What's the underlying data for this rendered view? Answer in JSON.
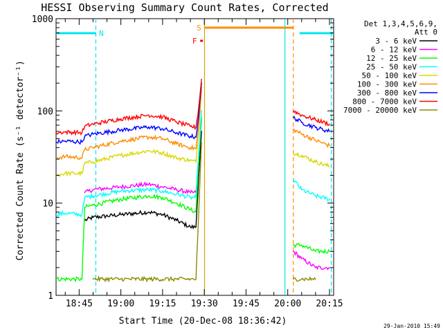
{
  "chart_data": {
    "type": "line",
    "title": "HESSI Observing Summary Count Rates, Corrected",
    "xlabel": "Start Time (20-Dec-08 18:36:42)",
    "ylabel": "Corrected Count Rate (s⁻¹ detector⁻¹)",
    "y_scale": "log",
    "xlim": [
      "18:36:42",
      "20:16:30"
    ],
    "ylim": [
      1,
      1000
    ],
    "x_ticks": [
      "18:45",
      "19:00",
      "19:15",
      "19:30",
      "19:45",
      "20:00",
      "20:15"
    ],
    "y_ticks": [
      "1",
      "10",
      "100",
      "1000"
    ],
    "grid": false,
    "legend_position": "right",
    "legend_header": [
      "Det 1,3,4,5,6,9,",
      "Att 0"
    ],
    "timestamp": "29-Jan-2010 15:49",
    "flags": [
      {
        "label": "N",
        "color": "#00e5ee",
        "intervals": [
          [
            "18:36:42",
            "18:51:00"
          ],
          [
            "20:04:15",
            "20:16:30"
          ]
        ]
      },
      {
        "label": "S",
        "color": "#ff8c00",
        "intervals": [
          [
            "19:30:05",
            "20:02:00"
          ]
        ]
      },
      {
        "label": "F",
        "color": "#ff0000",
        "intervals": [
          [
            "19:28:30",
            "19:29:30"
          ]
        ]
      }
    ],
    "vertical_markers": [
      {
        "time": "18:51:00",
        "color": "#00e5ee",
        "style": "dashed"
      },
      {
        "time": "19:30:05",
        "color": "#d8a200",
        "style": "solid"
      },
      {
        "time": "19:59:00",
        "color": "#00e5ee",
        "style": "solid"
      },
      {
        "time": "20:02:00",
        "color": "#ff8c00",
        "style": "dashed"
      },
      {
        "time": "20:15:40",
        "color": "#00e5ee",
        "style": "dashed"
      }
    ],
    "series": [
      {
        "name": "3 - 6 keV",
        "color": "#000000",
        "x": [
          "18:47",
          "18:50",
          "19:00",
          "19:10",
          "19:15",
          "19:20",
          "19:25",
          "19:27",
          "19:28",
          "19:29",
          "20:02",
          "20:05",
          "20:10",
          "20:15"
        ],
        "y": [
          6.5,
          7,
          7.5,
          8,
          7.5,
          6.5,
          5.5,
          5.5,
          20,
          60,
          null,
          null,
          null,
          null
        ]
      },
      {
        "name": "6 - 12 keV",
        "color": "#ff00ff",
        "x": [
          "18:47",
          "18:50",
          "19:00",
          "19:10",
          "19:15",
          "19:20",
          "19:25",
          "19:27",
          "19:28",
          "19:29",
          "20:02",
          "20:05",
          "20:10",
          "20:15"
        ],
        "y": [
          13,
          14,
          15,
          16,
          15,
          14,
          13,
          13,
          30,
          80,
          3,
          2.5,
          2,
          2
        ]
      },
      {
        "name": "12 - 25 keV",
        "color": "#00ff00",
        "x": [
          "18:36:42",
          "18:46",
          "18:47",
          "18:50",
          "19:00",
          "19:10",
          "19:15",
          "19:20",
          "19:25",
          "19:27",
          "19:28",
          "19:29",
          "20:02",
          "20:05",
          "20:10",
          "20:15"
        ],
        "y": [
          1.5,
          1.5,
          9,
          9.5,
          11,
          12,
          11.5,
          10,
          8.5,
          8,
          30,
          85,
          3.5,
          3.5,
          3,
          3
        ]
      },
      {
        "name": "25 - 50 keV",
        "color": "#00ffff",
        "x": [
          "18:36:42",
          "18:40",
          "18:46",
          "18:47",
          "18:50",
          "19:00",
          "19:10",
          "19:15",
          "19:20",
          "19:25",
          "19:27",
          "19:28",
          "19:29",
          "20:02",
          "20:05",
          "20:10",
          "20:15"
        ],
        "y": [
          7.5,
          7.8,
          7.5,
          11.5,
          12,
          13.5,
          14,
          13.5,
          12.5,
          11.5,
          11.5,
          35,
          100,
          18,
          14,
          12,
          11
        ]
      },
      {
        "name": "50 - 100 keV",
        "color": "#d8d800",
        "x": [
          "18:36:42",
          "18:40",
          "18:46",
          "18:47",
          "18:50",
          "19:00",
          "19:10",
          "19:15",
          "19:20",
          "19:25",
          "19:27",
          "19:28",
          "19:29",
          "20:02",
          "20:05",
          "20:10",
          "20:15"
        ],
        "y": [
          20,
          21,
          21,
          27,
          28,
          33,
          37,
          35,
          31,
          29,
          28,
          60,
          170,
          35,
          33,
          28,
          25
        ]
      },
      {
        "name": "100 - 300 keV",
        "color": "#ff8c00",
        "x": [
          "18:36:42",
          "18:40",
          "18:46",
          "18:47",
          "18:50",
          "19:00",
          "19:10",
          "19:15",
          "19:20",
          "19:25",
          "19:27",
          "19:28",
          "19:29",
          "20:02",
          "20:05",
          "20:10",
          "20:15"
        ],
        "y": [
          31,
          32,
          31,
          38,
          40,
          47,
          52,
          50,
          44,
          40,
          39,
          70,
          180,
          63,
          56,
          48,
          42
        ]
      },
      {
        "name": "300 - 800 keV",
        "color": "#0000ff",
        "x": [
          "18:36:42",
          "18:40",
          "18:46",
          "18:47",
          "18:50",
          "19:00",
          "19:10",
          "19:15",
          "19:20",
          "19:25",
          "19:27",
          "19:28",
          "19:29",
          "20:02",
          "20:05",
          "20:10",
          "20:15"
        ],
        "y": [
          46,
          47,
          46,
          53,
          56,
          62,
          67,
          64,
          58,
          53,
          52,
          90,
          200,
          85,
          75,
          66,
          60
        ]
      },
      {
        "name": "800 - 7000 keV",
        "color": "#ff0000",
        "x": [
          "18:36:42",
          "18:40",
          "18:46",
          "18:47",
          "18:50",
          "19:00",
          "19:10",
          "19:15",
          "19:20",
          "19:25",
          "19:27",
          "19:28",
          "19:29",
          "20:02",
          "20:05",
          "20:10",
          "20:15"
        ],
        "y": [
          58,
          59,
          58,
          68,
          72,
          82,
          90,
          86,
          76,
          68,
          66,
          110,
          220,
          100,
          90,
          80,
          72
        ]
      },
      {
        "name": "7000 - 20000 keV",
        "color": "#8b8b00",
        "x": [
          "18:50",
          "19:00",
          "19:10",
          "19:20",
          "19:25",
          "19:27",
          "19:28",
          "19:29",
          "20:02",
          "20:05",
          "20:10"
        ],
        "y": [
          1.5,
          1.5,
          1.5,
          1.5,
          1.5,
          1.5,
          8,
          45,
          1.5,
          1.5,
          1.5
        ]
      }
    ]
  }
}
